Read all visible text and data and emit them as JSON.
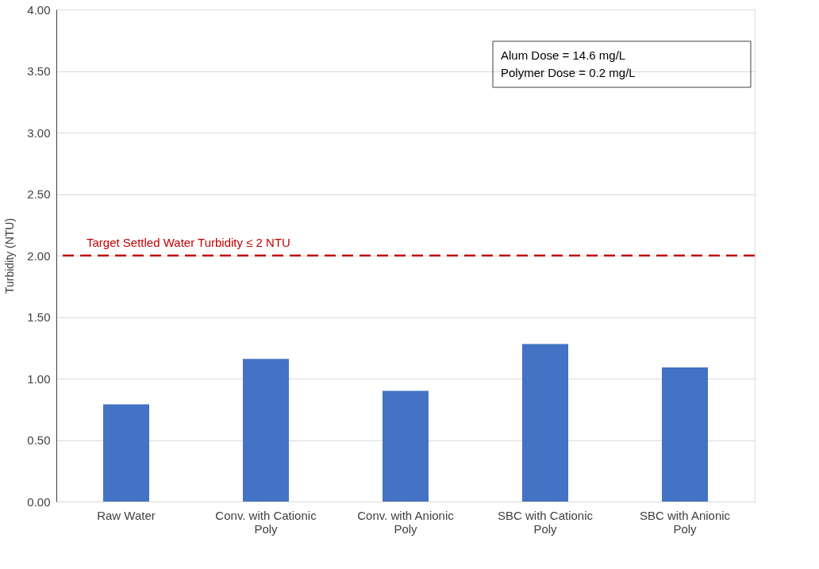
{
  "chart_data": {
    "type": "bar",
    "ylabel": "Turbidity (NTU)",
    "categories": [
      "Raw Water",
      "Conv. with Cationic Poly",
      "Conv. with Anionic Poly",
      "SBC with Cationic Poly",
      "SBC with Anionic Poly"
    ],
    "values": [
      0.79,
      1.16,
      0.9,
      1.28,
      1.09
    ],
    "color": "#4472c4",
    "ylim": [
      0,
      4
    ],
    "yticks": [
      {
        "value": 0,
        "label": "0.00"
      },
      {
        "value": 0.5,
        "label": "0.50"
      },
      {
        "value": 1,
        "label": "1.00"
      },
      {
        "value": 1.5,
        "label": "1.50"
      },
      {
        "value": 2,
        "label": "2.00"
      },
      {
        "value": 2.5,
        "label": "2.50"
      },
      {
        "value": 3,
        "label": "3.00"
      },
      {
        "value": 3.5,
        "label": "3.50"
      },
      {
        "value": 4,
        "label": "4.00"
      }
    ],
    "grid": "y",
    "ref_lines": [
      {
        "axis": "y",
        "value": 2,
        "label": "Target Settled Water Turbidity ≤ 2 NTU",
        "color": "#c00000",
        "line_style": "dashed"
      }
    ],
    "annotations": [
      "Alum Dose = 14.6 mg/L",
      "Polymer Dose = 0.2 mg/L"
    ]
  }
}
